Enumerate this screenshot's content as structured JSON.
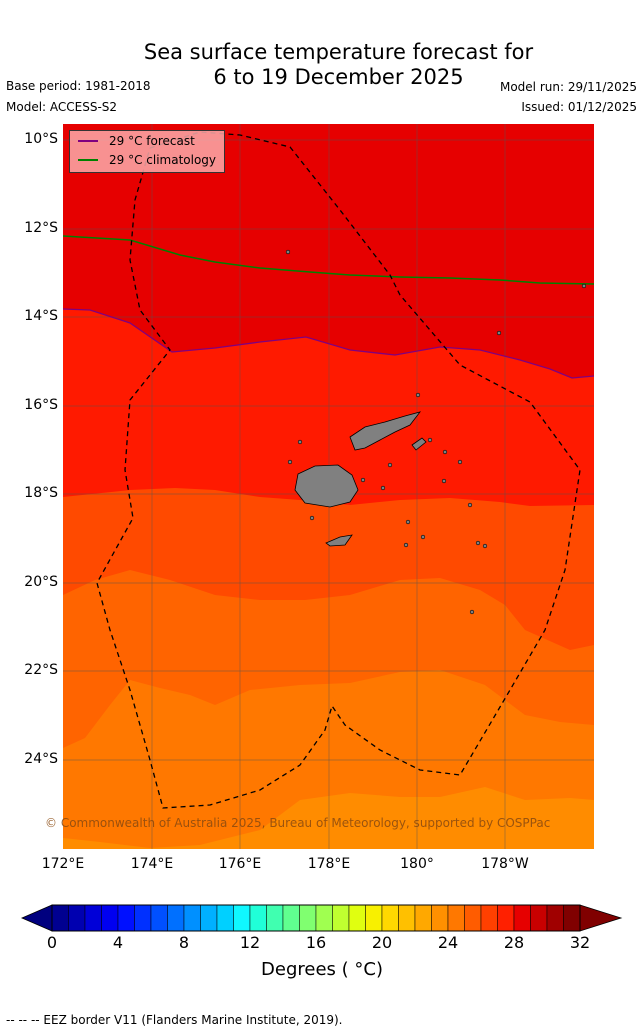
{
  "title_line1": "Sea surface temperature forecast for",
  "title_line2": "6 to 19 December 2025",
  "base_period": "Base period: 1981-2018",
  "model": "Model: ACCESS-S2",
  "model_run": "Model run: 29/11/2025",
  "issued": "Issued: 01/12/2025",
  "legend": {
    "forecast": {
      "label": "29 °C  forecast",
      "color": "#800080"
    },
    "climatology": {
      "label": "29 °C  climatology",
      "color": "#008000"
    }
  },
  "lat_labels": [
    "10°S",
    "12°S",
    "14°S",
    "16°S",
    "18°S",
    "20°S",
    "22°S",
    "24°S"
  ],
  "lon_labels": [
    "172°E",
    "174°E",
    "176°E",
    "178°E",
    "180°",
    "178°W"
  ],
  "copyright": "© Commonwealth of Australia 2025, Bureau of Meteorology, supported by COSPPac",
  "colorbar": {
    "ticks": [
      "0",
      "4",
      "8",
      "12",
      "16",
      "20",
      "24",
      "28",
      "32"
    ],
    "label": "Degrees ( °C)",
    "under_color": "#00007f",
    "over_color": "#800000",
    "colors": [
      "#000090",
      "#0000b0",
      "#0000d8",
      "#0000f0",
      "#0010ff",
      "#0030ff",
      "#0050ff",
      "#0070ff",
      "#0090ff",
      "#00b0ff",
      "#00d0ff",
      "#10f8ff",
      "#20ffd8",
      "#40ffb0",
      "#60ff90",
      "#80ff70",
      "#a0ff50",
      "#c0ff30",
      "#e0ff10",
      "#f8f000",
      "#ffd800",
      "#ffc000",
      "#ffa800",
      "#ff9000",
      "#ff7800",
      "#ff5c00",
      "#ff4000",
      "#ff2000",
      "#e60000",
      "#c80000",
      "#a00000",
      "#800000"
    ]
  },
  "eez_note": "--  --  -- EEZ border V11 (Flanders Marine Institute, 2019).",
  "map_colors": {
    "band_29plus": "#e60000",
    "band_28": "#ff1a00",
    "band_27": "#ff4a00",
    "band_26": "#ff6400",
    "band_25": "#ff7800",
    "band_24": "#ff8c00",
    "land": "#808080"
  }
}
